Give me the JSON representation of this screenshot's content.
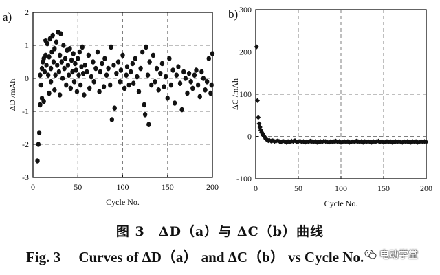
{
  "chart_data": [
    {
      "type": "scatter",
      "panel_label": "a)",
      "ylabel": "ΔD /mAh",
      "xlabel": "Cycle No.",
      "xlim": [
        0,
        200
      ],
      "ylim": [
        -3,
        2
      ],
      "xticks": [
        0,
        50,
        100,
        150,
        200
      ],
      "yticks": [
        -3,
        -2,
        -1,
        0,
        1,
        2
      ],
      "grid": true,
      "series": [
        {
          "x": [
            5,
            6,
            7,
            8,
            8,
            9,
            10,
            10,
            11,
            12,
            12,
            13,
            14,
            14,
            15,
            16,
            17,
            18,
            18,
            19,
            20,
            20,
            21,
            22,
            23,
            24,
            24,
            25,
            26,
            27,
            28,
            29,
            30,
            30,
            31,
            32,
            33,
            34,
            35,
            36,
            37,
            38,
            39,
            40,
            41,
            42,
            43,
            44,
            45,
            46,
            47,
            48,
            49,
            50,
            51,
            52,
            53,
            54,
            55,
            56,
            57,
            58,
            60,
            62,
            63,
            65,
            67,
            68,
            70,
            72,
            74,
            75,
            77,
            79,
            80,
            82,
            84,
            86,
            87,
            88,
            90,
            91,
            93,
            95,
            97,
            98,
            100,
            102,
            104,
            105,
            107,
            109,
            111,
            112,
            114,
            116,
            118,
            120,
            122,
            124,
            125,
            126,
            128,
            129,
            130,
            132,
            134,
            136,
            138,
            140,
            142,
            144,
            146,
            148,
            150,
            152,
            154,
            156,
            158,
            160,
            162,
            164,
            166,
            168,
            170,
            172,
            174,
            176,
            178,
            180,
            182,
            184,
            186,
            188,
            190,
            192,
            194,
            196,
            198,
            199,
            200
          ],
          "y": [
            -2.5,
            -2.0,
            -1.65,
            -0.8,
            0.1,
            -0.2,
            0.3,
            -0.6,
            0.5,
            0.6,
            -0.7,
            0.2,
            1.15,
            0.7,
            0.4,
            1.05,
            0.1,
            0.65,
            -0.45,
            1.2,
            0.3,
            -0.1,
            0.8,
            1.3,
            0.5,
            0.9,
            -0.35,
            0.1,
            1.1,
            0.4,
            1.4,
            0.2,
            0.7,
            -0.5,
            1.35,
            0.5,
            0.0,
            1.0,
            0.3,
            0.6,
            -0.2,
            0.85,
            0.4,
            0.1,
            0.9,
            -0.3,
            0.55,
            0.2,
            0.75,
            -0.1,
            0.45,
            0.25,
            -0.4,
            0.6,
            0.1,
            0.8,
            -0.2,
            0.35,
            0.95,
            0.15,
            -0.5,
            0.4,
            0.2,
            0.7,
            -0.3,
            0.05,
            0.5,
            -0.1,
            0.3,
            0.8,
            -0.4,
            0.2,
            0.45,
            -0.25,
            0.6,
            0.1,
            0.3,
            -0.2,
            0.95,
            -1.25,
            0.4,
            -0.9,
            0.15,
            0.5,
            -0.1,
            0.25,
            0.7,
            -0.3,
            0.1,
            0.35,
            -0.2,
            0.2,
            0.45,
            -0.15,
            0.6,
            0.05,
            -0.4,
            0.3,
            0.8,
            -0.8,
            -1.1,
            0.95,
            0.1,
            -1.4,
            0.5,
            -0.2,
            0.7,
            -0.1,
            0.3,
            -0.35,
            0.15,
            0.45,
            -0.25,
            0.05,
            -0.6,
            0.6,
            -0.2,
            0.25,
            -0.75,
            0.1,
            0.35,
            -0.15,
            -0.95,
            0.2,
            0.0,
            -0.45,
            0.15,
            -0.1,
            -0.3,
            0.1,
            0.25,
            -0.2,
            -0.55,
            0.2,
            0.0,
            -0.35,
            -0.1,
            0.6,
            -0.45,
            -0.2,
            0.75
          ]
        }
      ]
    },
    {
      "type": "scatter",
      "panel_label": "b)",
      "ylabel": "ΔC /mAh",
      "xlabel": "Cycle No.",
      "xlim": [
        0,
        200
      ],
      "ylim": [
        -100,
        300
      ],
      "xticks": [
        0,
        50,
        100,
        150,
        200
      ],
      "yticks": [
        -100,
        0,
        100,
        200,
        300
      ],
      "grid": true,
      "series": [
        {
          "x": [
            1,
            2,
            3,
            4,
            5,
            6,
            7,
            8,
            9,
            10,
            11,
            12,
            13,
            14,
            15,
            16,
            18,
            20,
            22,
            24,
            26,
            28,
            30,
            32,
            34,
            36,
            38,
            40,
            42,
            44,
            46,
            48,
            50,
            52,
            54,
            56,
            58,
            60,
            62,
            64,
            66,
            68,
            70,
            72,
            74,
            76,
            78,
            80,
            82,
            84,
            86,
            88,
            90,
            92,
            94,
            96,
            98,
            100,
            102,
            104,
            106,
            108,
            110,
            112,
            114,
            116,
            118,
            120,
            122,
            124,
            126,
            128,
            130,
            132,
            134,
            136,
            138,
            140,
            142,
            144,
            146,
            148,
            150,
            152,
            154,
            156,
            158,
            160,
            162,
            164,
            166,
            168,
            170,
            172,
            174,
            176,
            178,
            180,
            182,
            184,
            186,
            188,
            190,
            192,
            194,
            196,
            198,
            200
          ],
          "y": [
            212,
            85,
            45,
            30,
            22,
            15,
            10,
            6,
            2,
            0,
            -3,
            -6,
            -8,
            -9,
            -10,
            -9,
            -11,
            -10,
            -12,
            -11,
            -10,
            -12,
            -13,
            -11,
            -12,
            -14,
            -12,
            -13,
            -11,
            -12,
            -10,
            -13,
            -12,
            -11,
            -13,
            -12,
            -14,
            -12,
            -13,
            -11,
            -12,
            -13,
            -12,
            -14,
            -13,
            -12,
            -13,
            -11,
            -12,
            -13,
            -14,
            -12,
            -13,
            -12,
            -11,
            -13,
            -12,
            -14,
            -13,
            -12,
            -13,
            -12,
            -14,
            -13,
            -12,
            -13,
            -11,
            -12,
            -13,
            -12,
            -14,
            -12,
            -13,
            -12,
            -13,
            -14,
            -12,
            -13,
            -12,
            -11,
            -13,
            -12,
            -14,
            -13,
            -12,
            -13,
            -12,
            -14,
            -13,
            -12,
            -13,
            -12,
            -13,
            -14,
            -12,
            -13,
            -12,
            -13,
            -14,
            -12,
            -13,
            -12,
            -14,
            -13,
            -12,
            -13,
            -12,
            -13
          ]
        }
      ]
    }
  ],
  "caption": {
    "cn": "图 3　ΔD（a）与 ΔC（b）曲线",
    "en": "Fig. 3　 Curves of ΔD（a） and ΔC（b） vs Cycle No."
  },
  "watermark": {
    "text": "电动学堂",
    "icon": "wechat-icon"
  },
  "colors": {
    "marker": "#111111",
    "grid": "#7f7f7f",
    "axis": "#111111"
  }
}
